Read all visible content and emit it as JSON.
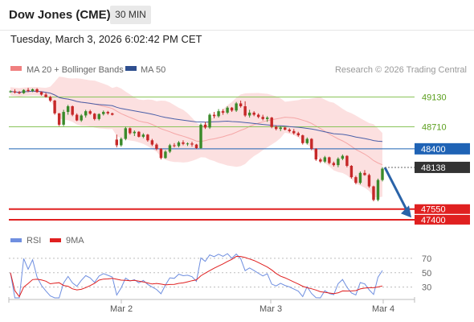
{
  "header": {
    "title": "Dow Jones (CME)",
    "timeframe": "30 MIN"
  },
  "timestamp": "Tuesday, March 3, 2026 6:02:42 PM CET",
  "legend": {
    "ma20_label": "MA 20 + Bollinger Bands",
    "ma50_label": "MA 50",
    "copyright": "Research © 2026 Trading Central"
  },
  "rsi_legend": {
    "rsi_label": "RSI",
    "ma_label": "9MA"
  },
  "colors": {
    "bull": "#3a8a2a",
    "bear": "#c62828",
    "bollinger": "#fbd3d3",
    "ma20": "#f08080",
    "ma50": "#4a5fa8",
    "resistance": "#8ac45a",
    "pivot": "#1f63b5",
    "support": "#e02020",
    "rsi": "#6f8fe0",
    "rsi_ma": "#e02020",
    "arrow": "#2a63a8"
  },
  "chart_data": {
    "type": "candlestick",
    "x_ticks": [
      "Mar 2",
      "Mar 3",
      "Mar 4"
    ],
    "y_range": [
      47320,
      49420
    ],
    "last_price": "48138",
    "levels": [
      {
        "label": "49130",
        "value": 49130,
        "kind": "resistance"
      },
      {
        "label": "48710",
        "value": 48710,
        "kind": "resistance"
      },
      {
        "label": "48400",
        "value": 48400,
        "kind": "pivot"
      },
      {
        "label": "47550",
        "value": 47550,
        "kind": "support"
      },
      {
        "label": "47400",
        "value": 47400,
        "kind": "support"
      }
    ],
    "candles": [
      [
        49200,
        49225,
        49190,
        49210
      ],
      [
        49210,
        49240,
        49180,
        49195
      ],
      [
        49195,
        49215,
        49170,
        49185
      ],
      [
        49185,
        49240,
        49175,
        49230
      ],
      [
        49230,
        49260,
        49200,
        49215
      ],
      [
        49215,
        49250,
        49200,
        49240
      ],
      [
        49240,
        49255,
        49190,
        49200
      ],
      [
        49200,
        49210,
        49150,
        49165
      ],
      [
        49165,
        49190,
        49120,
        49130
      ],
      [
        49130,
        49145,
        49060,
        49080
      ],
      [
        49080,
        49090,
        48880,
        48900
      ],
      [
        48900,
        48905,
        48720,
        48740
      ],
      [
        48740,
        48950,
        48720,
        48920
      ],
      [
        48920,
        49020,
        48880,
        49000
      ],
      [
        49000,
        49010,
        48860,
        48880
      ],
      [
        48880,
        48900,
        48790,
        48800
      ],
      [
        48800,
        48890,
        48780,
        48870
      ],
      [
        48870,
        48950,
        48840,
        48930
      ],
      [
        48930,
        48950,
        48880,
        48895
      ],
      [
        48895,
        48905,
        48800,
        48820
      ],
      [
        48820,
        48900,
        48800,
        48890
      ],
      [
        48890,
        48940,
        48870,
        48920
      ],
      [
        48920,
        48935,
        48880,
        48900
      ],
      [
        48900,
        48910,
        48870,
        48880
      ],
      [
        48530,
        48600,
        48420,
        48450
      ],
      [
        48450,
        48560,
        48430,
        48540
      ],
      [
        48540,
        48710,
        48520,
        48690
      ],
      [
        48690,
        48700,
        48600,
        48620
      ],
      [
        48620,
        48660,
        48580,
        48640
      ],
      [
        48640,
        48650,
        48560,
        48570
      ],
      [
        48570,
        48620,
        48550,
        48600
      ],
      [
        48600,
        48610,
        48500,
        48520
      ],
      [
        48520,
        48540,
        48440,
        48460
      ],
      [
        48460,
        48480,
        48380,
        48400
      ],
      [
        48400,
        48410,
        48250,
        48270
      ],
      [
        48270,
        48380,
        48260,
        48360
      ],
      [
        48360,
        48470,
        48340,
        48450
      ],
      [
        48450,
        48480,
        48420,
        48440
      ],
      [
        48440,
        48510,
        48420,
        48490
      ],
      [
        48490,
        48520,
        48450,
        48470
      ],
      [
        48470,
        48490,
        48440,
        48475
      ],
      [
        48475,
        48500,
        48430,
        48460
      ],
      [
        48460,
        48470,
        48400,
        48410
      ],
      [
        48410,
        48760,
        48400,
        48740
      ],
      [
        48740,
        48780,
        48680,
        48700
      ],
      [
        48700,
        48900,
        48680,
        48880
      ],
      [
        48880,
        48920,
        48830,
        48860
      ],
      [
        48860,
        48960,
        48840,
        48930
      ],
      [
        48930,
        48960,
        48880,
        48910
      ],
      [
        48910,
        49000,
        48890,
        48980
      ],
      [
        48980,
        48990,
        48920,
        48940
      ],
      [
        48940,
        49060,
        48920,
        49040
      ],
      [
        49040,
        49080,
        48980,
        49000
      ],
      [
        49000,
        49070,
        48850,
        48870
      ],
      [
        48870,
        48950,
        48840,
        48910
      ],
      [
        48910,
        48930,
        48860,
        48880
      ],
      [
        48880,
        48900,
        48830,
        48850
      ],
      [
        48850,
        48880,
        48800,
        48820
      ],
      [
        48820,
        48860,
        48780,
        48840
      ],
      [
        48840,
        48850,
        48690,
        48710
      ],
      [
        48710,
        48730,
        48660,
        48680
      ],
      [
        48680,
        48720,
        48650,
        48700
      ],
      [
        48700,
        48710,
        48660,
        48670
      ],
      [
        48670,
        48690,
        48630,
        48650
      ],
      [
        48650,
        48680,
        48600,
        48620
      ],
      [
        48620,
        48640,
        48570,
        48590
      ],
      [
        48590,
        48600,
        48460,
        48480
      ],
      [
        48480,
        48560,
        48460,
        48540
      ],
      [
        48540,
        48550,
        48380,
        48400
      ],
      [
        48400,
        48410,
        48230,
        48250
      ],
      [
        48250,
        48270,
        48200,
        48220
      ],
      [
        48220,
        48300,
        48200,
        48280
      ],
      [
        48280,
        48290,
        48180,
        48200
      ],
      [
        48200,
        48220,
        48150,
        48170
      ],
      [
        48170,
        48280,
        48140,
        48260
      ],
      [
        48260,
        48320,
        48240,
        48300
      ],
      [
        48300,
        48310,
        48140,
        48160
      ],
      [
        48160,
        48170,
        47980,
        48000
      ],
      [
        48000,
        48020,
        47900,
        47920
      ],
      [
        47920,
        48080,
        47900,
        48060
      ],
      [
        48060,
        48100,
        48020,
        48030
      ],
      [
        48030,
        48050,
        47850,
        47870
      ],
      [
        47870,
        47880,
        47660,
        47680
      ],
      [
        47680,
        47980,
        47660,
        47960
      ],
      [
        47960,
        48140,
        47940,
        48120
      ]
    ],
    "rsi_axis_ticks": [
      "70",
      "50",
      "30"
    ],
    "rsi_range": [
      15,
      80
    ]
  }
}
